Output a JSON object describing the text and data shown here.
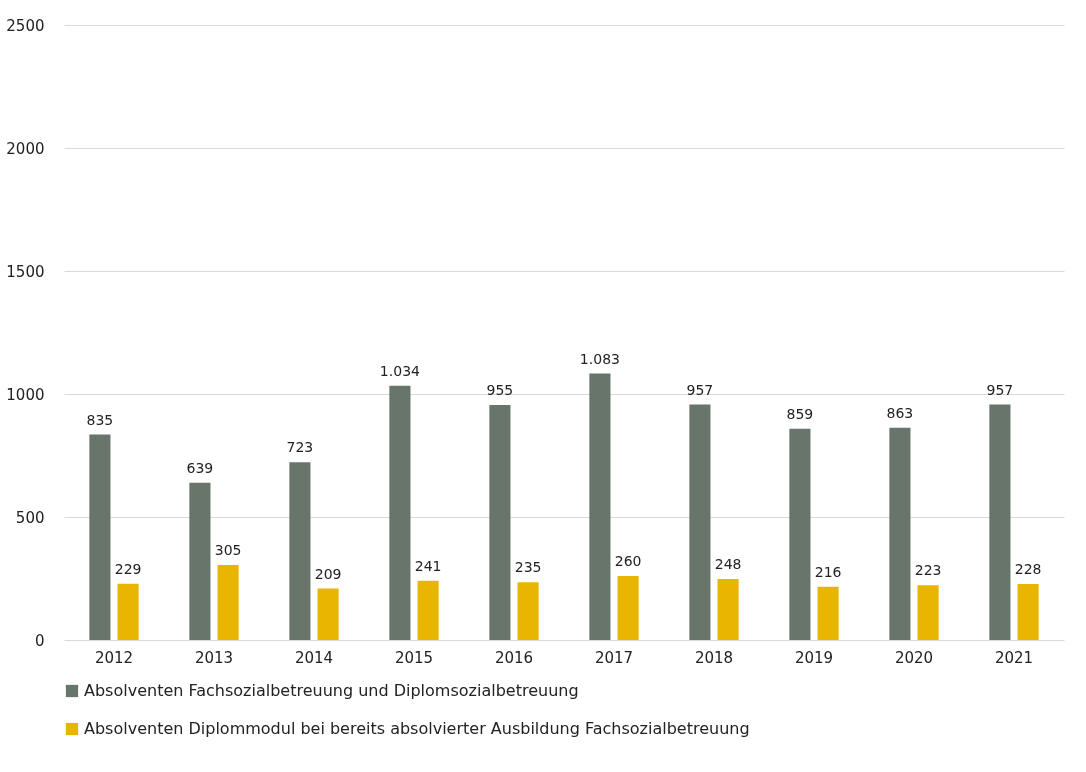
{
  "chart_data": {
    "type": "bar",
    "categories": [
      "2012",
      "2013",
      "2014",
      "2015",
      "2016",
      "2017",
      "2018",
      "2019",
      "2020",
      "2021"
    ],
    "series": [
      {
        "name": "Absolventen Fachsozialbetreuung und Diplomsozialbetreuung",
        "color": "#68756b",
        "values": [
          835,
          639,
          723,
          1034,
          955,
          1083,
          957,
          859,
          863,
          957
        ],
        "value_labels": [
          "835",
          "639",
          "723",
          "1.034",
          "955",
          "1.083",
          "957",
          "859",
          "863",
          "957"
        ]
      },
      {
        "name": "Absolventen Diplommodul bei bereits absolvierter Ausbildung Fachsozialbetreuung",
        "color": "#e8b600",
        "values": [
          229,
          305,
          209,
          241,
          235,
          260,
          248,
          216,
          223,
          228
        ],
        "value_labels": [
          "229",
          "305",
          "209",
          "241",
          "235",
          "260",
          "248",
          "216",
          "223",
          "228"
        ]
      }
    ],
    "ylim": [
      0,
      2500
    ],
    "yticks": [
      0,
      500,
      1000,
      1500,
      2000,
      2500
    ],
    "grid": "y",
    "legend": "bottom"
  }
}
